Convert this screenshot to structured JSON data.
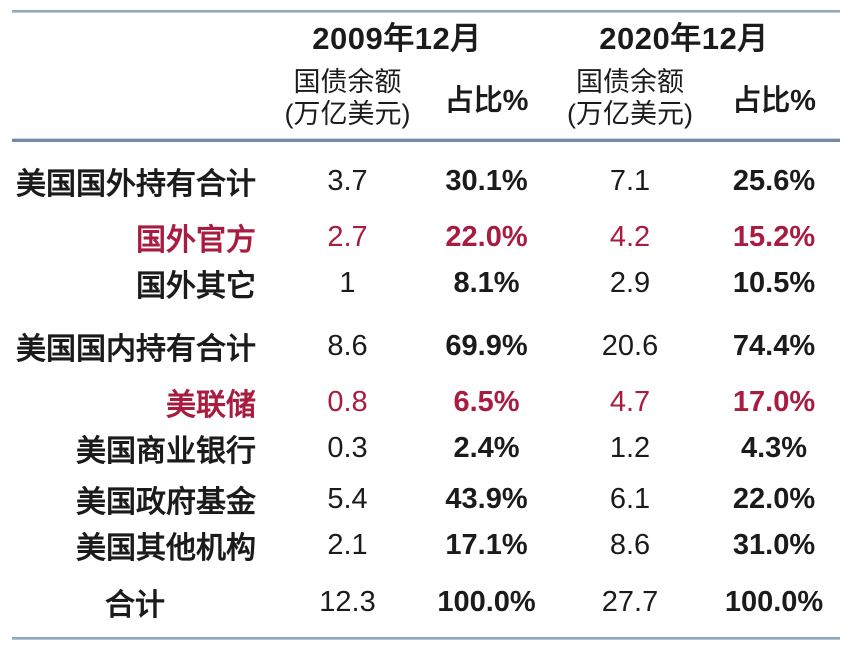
{
  "styles": {
    "highlight_color": "#a81c40",
    "text_color": "#1b1b1b",
    "rule_dark": "#76889f",
    "rule_light": "#c6d8e4",
    "background": "#ffffff"
  },
  "chart_data": {
    "type": "table",
    "title": "",
    "period_headers": [
      "2009年12月",
      "2020年12月"
    ],
    "subheader_balance_line1": "国债余额",
    "subheader_balance_line2": "(万亿美元)",
    "subheader_share": "占比%",
    "columns": [
      "",
      "国债余额(万亿美元) 2009年12月",
      "占比% 2009年12月",
      "国债余额(万亿美元) 2020年12月",
      "占比% 2020年12月"
    ],
    "rows": [
      {
        "label": "美国国外持有合计",
        "values": [
          "3.7",
          "30.1%",
          "7.1",
          "25.6%"
        ],
        "highlight": false
      },
      {
        "label": "国外官方",
        "values": [
          "2.7",
          "22.0%",
          "4.2",
          "15.2%"
        ],
        "highlight": true
      },
      {
        "label": "国外其它",
        "values": [
          "1",
          "8.1%",
          "2.9",
          "10.5%"
        ],
        "highlight": false
      },
      {
        "label": "美国国内持有合计",
        "values": [
          "8.6",
          "69.9%",
          "20.6",
          "74.4%"
        ],
        "highlight": false
      },
      {
        "label": "美联储",
        "values": [
          "0.8",
          "6.5%",
          "4.7",
          "17.0%"
        ],
        "highlight": true
      },
      {
        "label": "美国商业银行",
        "values": [
          "0.3",
          "2.4%",
          "1.2",
          "4.3%"
        ],
        "highlight": false
      },
      {
        "label": "美国政府基金",
        "values": [
          "5.4",
          "43.9%",
          "6.1",
          "22.0%"
        ],
        "highlight": false
      },
      {
        "label": "美国其他机构",
        "values": [
          "2.1",
          "17.1%",
          "8.6",
          "31.0%"
        ],
        "highlight": false
      },
      {
        "label": "合计",
        "values": [
          "12.3",
          "100.0%",
          "27.7",
          "100.0%"
        ],
        "highlight": false
      }
    ]
  }
}
